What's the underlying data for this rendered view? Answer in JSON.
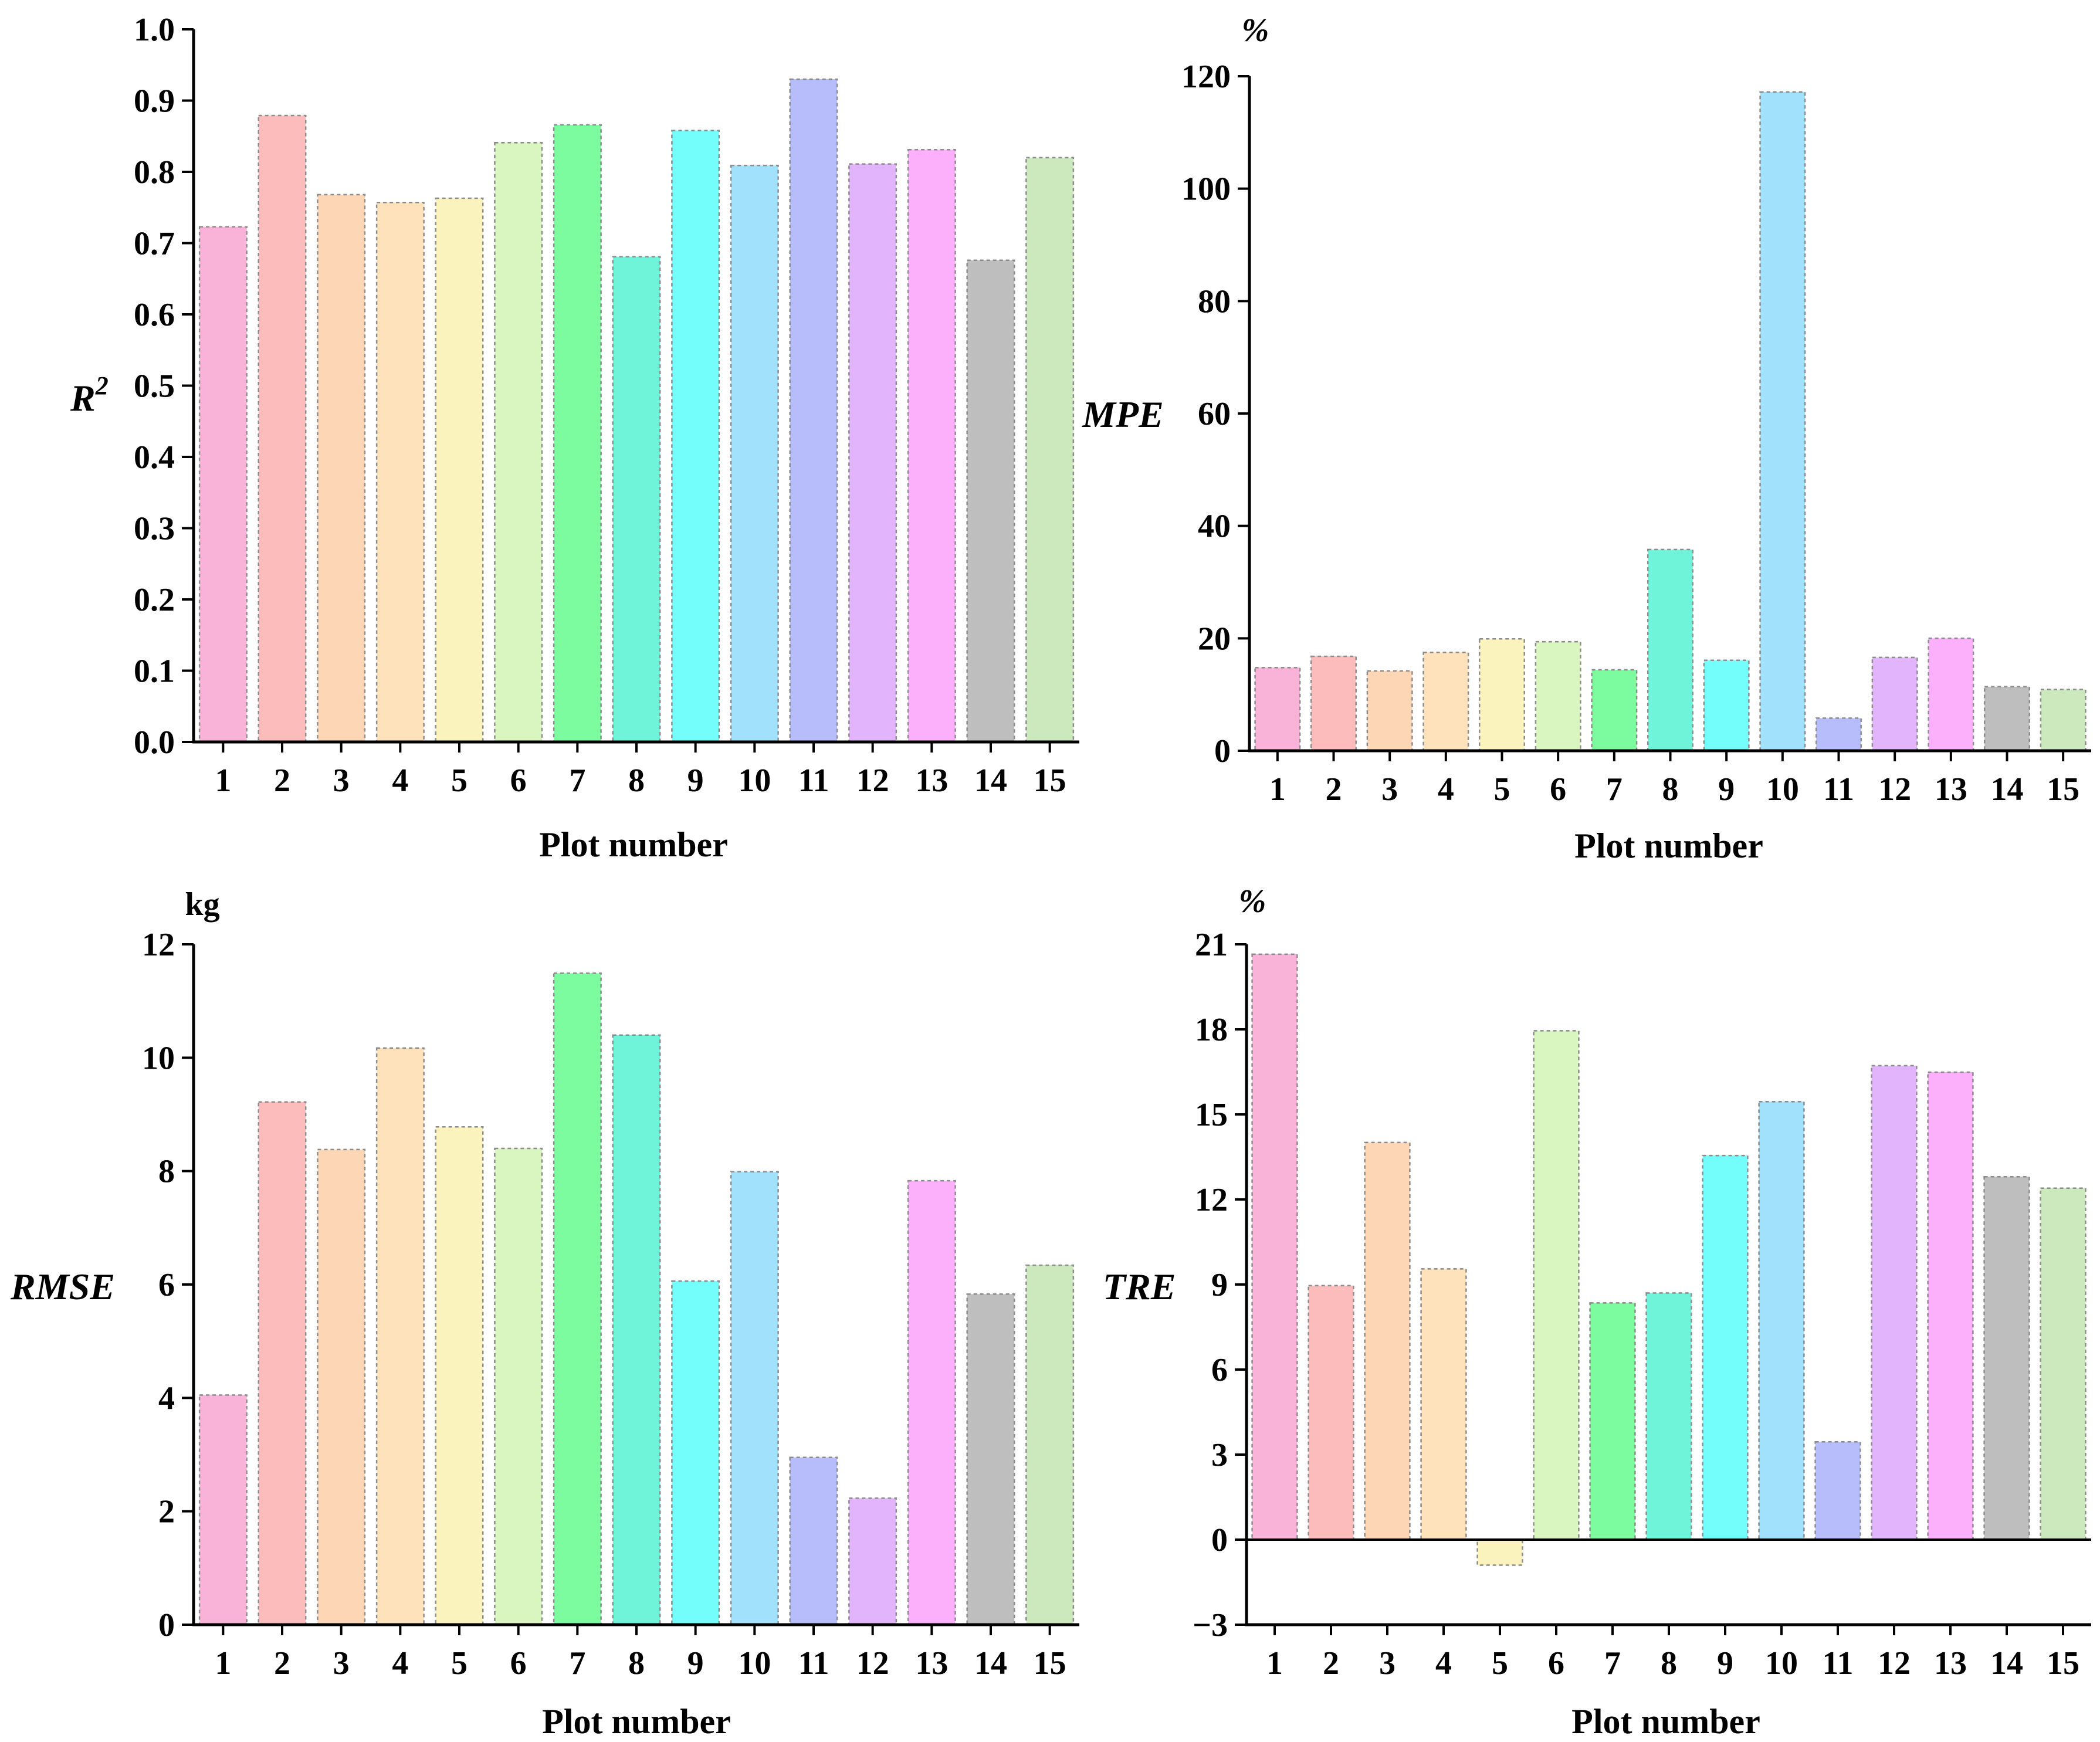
{
  "colors": [
    "#f9b3d9",
    "#fdbcbc",
    "#fdd6b6",
    "#fde2bb",
    "#fbf3bd",
    "#daf6c0",
    "#7dfb9f",
    "#6ff4da",
    "#73fdfb",
    "#a1e1fb",
    "#b7bdfb",
    "#e2b4fb",
    "#fcaffb",
    "#bebebe",
    "#cbe9bc"
  ],
  "chart_data": [
    {
      "id": "r2",
      "type": "bar",
      "categories": [
        "1",
        "2",
        "3",
        "4",
        "5",
        "6",
        "7",
        "8",
        "9",
        "10",
        "11",
        "12",
        "13",
        "14",
        "15"
      ],
      "values": [
        0.723,
        0.879,
        0.768,
        0.757,
        0.763,
        0.841,
        0.866,
        0.681,
        0.858,
        0.809,
        0.93,
        0.811,
        0.831,
        0.676,
        0.82
      ],
      "xlabel": "Plot number",
      "ylabel_main": "R",
      "ylabel_sup": "2",
      "unit": "",
      "ylim": [
        0.0,
        1.0
      ],
      "yticks": [
        0.0,
        0.1,
        0.2,
        0.3,
        0.4,
        0.5,
        0.6,
        0.7,
        0.8,
        0.9,
        1.0
      ],
      "ytick_labels": [
        "0.0",
        "0.1",
        "0.2",
        "0.3",
        "0.4",
        "0.5",
        "0.6",
        "0.7",
        "0.8",
        "0.9",
        "1.0"
      ]
    },
    {
      "id": "mpe",
      "type": "bar",
      "categories": [
        "1",
        "2",
        "3",
        "4",
        "5",
        "6",
        "7",
        "8",
        "9",
        "10",
        "11",
        "12",
        "13",
        "14",
        "15"
      ],
      "values": [
        14.8,
        16.8,
        14.2,
        17.5,
        19.9,
        19.4,
        14.4,
        35.8,
        16.1,
        117.2,
        5.8,
        16.6,
        20.0,
        11.4,
        10.9
      ],
      "xlabel": "Plot number",
      "ylabel_main": "MPE",
      "ylabel_sup": "",
      "unit": "%",
      "ylim": [
        0,
        120
      ],
      "yticks": [
        0,
        20,
        40,
        60,
        80,
        100,
        120
      ],
      "ytick_labels": [
        "0",
        "20",
        "40",
        "60",
        "80",
        "100",
        "120"
      ]
    },
    {
      "id": "rmse",
      "type": "bar",
      "categories": [
        "1",
        "2",
        "3",
        "4",
        "5",
        "6",
        "7",
        "8",
        "9",
        "10",
        "11",
        "12",
        "13",
        "14",
        "15"
      ],
      "values": [
        4.05,
        9.22,
        8.38,
        10.17,
        8.78,
        8.4,
        11.49,
        10.4,
        6.06,
        7.99,
        2.95,
        2.23,
        7.83,
        5.83,
        6.34
      ],
      "xlabel": "Plot number",
      "ylabel_main": "RMSE",
      "ylabel_sup": "",
      "unit": "kg",
      "ylim": [
        0,
        12
      ],
      "yticks": [
        0,
        2,
        4,
        6,
        8,
        10,
        12
      ],
      "ytick_labels": [
        "0",
        "2",
        "4",
        "6",
        "8",
        "10",
        "12"
      ]
    },
    {
      "id": "tre",
      "type": "bar",
      "categories": [
        "1",
        "2",
        "3",
        "4",
        "5",
        "6",
        "7",
        "8",
        "9",
        "10",
        "11",
        "12",
        "13",
        "14",
        "15"
      ],
      "values": [
        20.65,
        8.96,
        14.01,
        9.55,
        -0.9,
        17.95,
        8.35,
        8.7,
        13.55,
        15.45,
        3.45,
        16.72,
        16.49,
        12.8,
        12.4
      ],
      "xlabel": "Plot number",
      "ylabel_main": "TRE",
      "ylabel_sup": "",
      "unit": "%",
      "ylim": [
        -3,
        21
      ],
      "yticks": [
        -3,
        0,
        3,
        6,
        9,
        12,
        15,
        18,
        21
      ],
      "ytick_labels": [
        "−3",
        "0",
        "3",
        "6",
        "9",
        "12",
        "15",
        "18",
        "21"
      ]
    }
  ]
}
